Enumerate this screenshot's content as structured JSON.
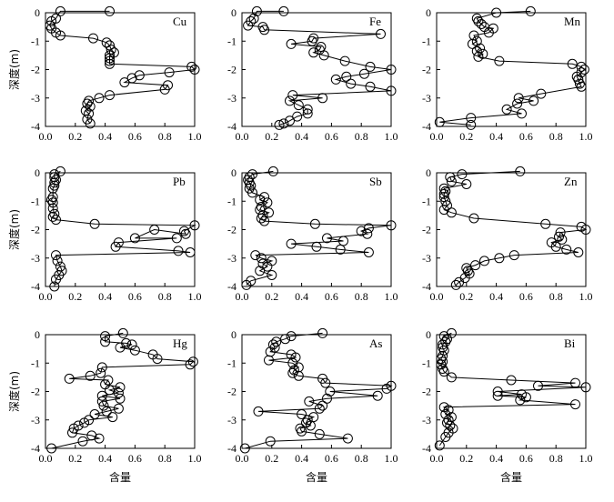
{
  "labels": {
    "xlabel": "含量",
    "ylabel": "深度(m)"
  },
  "chart_data": [
    {
      "type": "line",
      "panel": "Cu",
      "xlim": [
        0,
        1
      ],
      "ylim": [
        -4,
        0
      ],
      "x": [
        0.43,
        0.1,
        0.07,
        0.04,
        0.03,
        0.04,
        0.07,
        0.1,
        0.32,
        0.41,
        0.43,
        0.44,
        0.46,
        0.43,
        0.43,
        0.43,
        0.43,
        0.98,
        1.0,
        0.83,
        0.63,
        0.58,
        0.53,
        0.82,
        0.8,
        0.43,
        0.36,
        0.29,
        0.28,
        0.3,
        0.27,
        0.29,
        0.28,
        0.3
      ],
      "y": [
        0.05,
        0.05,
        -0.2,
        -0.3,
        -0.45,
        -0.55,
        -0.7,
        -0.8,
        -0.9,
        -1.05,
        -1.15,
        -1.3,
        -1.4,
        -1.5,
        -1.6,
        -1.7,
        -1.8,
        -1.9,
        -2.0,
        -2.1,
        -2.2,
        -2.3,
        -2.45,
        -2.55,
        -2.7,
        -2.9,
        -3.0,
        -3.1,
        -3.2,
        -3.3,
        -3.45,
        -3.55,
        -3.75,
        -3.9
      ]
    },
    {
      "type": "line",
      "panel": "Fe",
      "xlim": [
        0,
        1
      ],
      "ylim": [
        -4,
        0
      ],
      "x": [
        0.28,
        0.1,
        0.08,
        0.06,
        0.04,
        0.14,
        0.15,
        0.93,
        0.48,
        0.47,
        0.33,
        0.53,
        0.52,
        0.48,
        0.55,
        0.69,
        0.86,
        1.0,
        0.82,
        0.7,
        0.63,
        0.73,
        0.86,
        1.0,
        0.34,
        0.54,
        0.32,
        0.38,
        0.44,
        0.44,
        0.37,
        0.32,
        0.28,
        0.25
      ],
      "y": [
        0.05,
        0.05,
        -0.2,
        -0.3,
        -0.45,
        -0.5,
        -0.6,
        -0.75,
        -0.9,
        -1.0,
        -1.1,
        -1.2,
        -1.3,
        -1.4,
        -1.5,
        -1.7,
        -1.9,
        -2.0,
        -2.15,
        -2.25,
        -2.35,
        -2.5,
        -2.6,
        -2.75,
        -2.9,
        -3.0,
        -3.1,
        -3.25,
        -3.4,
        -3.55,
        -3.65,
        -3.8,
        -3.9,
        -3.95
      ]
    },
    {
      "type": "line",
      "panel": "Mn",
      "xlim": [
        0,
        1
      ],
      "ylim": [
        -4,
        0
      ],
      "x": [
        0.63,
        0.4,
        0.27,
        0.28,
        0.3,
        0.32,
        0.38,
        0.35,
        0.25,
        0.27,
        0.24,
        0.29,
        0.27,
        0.31,
        0.28,
        0.42,
        0.91,
        0.97,
        0.99,
        0.97,
        0.94,
        0.95,
        0.96,
        0.97,
        0.7,
        0.55,
        0.65,
        0.54,
        0.47,
        0.57,
        0.23,
        0.02,
        0.23
      ],
      "y": [
        0.05,
        0.0,
        -0.2,
        -0.3,
        -0.4,
        -0.5,
        -0.55,
        -0.7,
        -0.8,
        -1.0,
        -1.1,
        -1.25,
        -1.35,
        -1.45,
        -1.55,
        -1.7,
        -1.8,
        -1.9,
        -2.0,
        -2.1,
        -2.25,
        -2.35,
        -2.5,
        -2.6,
        -2.85,
        -3.0,
        -3.1,
        -3.2,
        -3.4,
        -3.55,
        -3.7,
        -3.85,
        -3.95
      ]
    },
    {
      "type": "line",
      "panel": "Pb",
      "xlim": [
        0,
        1
      ],
      "ylim": [
        -4,
        0
      ],
      "x": [
        0.1,
        0.06,
        0.06,
        0.07,
        0.06,
        0.06,
        0.05,
        0.05,
        0.04,
        0.05,
        0.05,
        0.06,
        0.05,
        0.07,
        0.33,
        1.0,
        0.93,
        0.94,
        0.73,
        0.6,
        0.88,
        0.49,
        0.47,
        0.89,
        0.97,
        0.07,
        0.08,
        0.1,
        0.11,
        0.09,
        0.07,
        0.06
      ],
      "y": [
        0.05,
        -0.05,
        -0.15,
        -0.25,
        -0.35,
        -0.45,
        -0.55,
        -0.85,
        -0.95,
        -1.05,
        -1.25,
        -1.45,
        -1.55,
        -1.65,
        -1.8,
        -1.85,
        -2.05,
        -2.15,
        -2.0,
        -2.3,
        -2.3,
        -2.45,
        -2.6,
        -2.75,
        -2.8,
        -2.9,
        -3.1,
        -3.3,
        -3.45,
        -3.6,
        -3.75,
        -4.0
      ]
    },
    {
      "type": "line",
      "panel": "Sb",
      "xlim": [
        0,
        1
      ],
      "ylim": [
        -4,
        0
      ],
      "x": [
        0.21,
        0.07,
        0.05,
        0.04,
        0.05,
        0.06,
        0.05,
        0.07,
        0.15,
        0.12,
        0.17,
        0.13,
        0.12,
        0.18,
        0.14,
        0.13,
        0.15,
        0.49,
        1.0,
        0.85,
        0.8,
        0.84,
        0.57,
        0.68,
        0.33,
        0.5,
        0.66,
        0.85,
        0.09,
        0.13,
        0.2,
        0.14,
        0.17,
        0.12,
        0.2,
        0.06,
        0.03
      ],
      "y": [
        0.05,
        -0.05,
        -0.15,
        -0.25,
        -0.35,
        -0.45,
        -0.55,
        -0.7,
        -0.85,
        -0.95,
        -1.05,
        -1.2,
        -1.3,
        -1.4,
        -1.5,
        -1.6,
        -1.7,
        -1.8,
        -1.85,
        -1.95,
        -2.05,
        -2.15,
        -2.3,
        -2.4,
        -2.5,
        -2.6,
        -2.7,
        -2.8,
        -2.9,
        -3.0,
        -3.1,
        -3.2,
        -3.3,
        -3.45,
        -3.6,
        -3.8,
        -3.95
      ]
    },
    {
      "type": "line",
      "panel": "Zn",
      "xlim": [
        0,
        1
      ],
      "ylim": [
        -4,
        0
      ],
      "x": [
        0.56,
        0.17,
        0.09,
        0.1,
        0.2,
        0.05,
        0.06,
        0.05,
        0.05,
        0.06,
        0.07,
        0.05,
        0.1,
        0.25,
        0.73,
        0.97,
        1.0,
        0.83,
        0.82,
        0.84,
        0.77,
        0.8,
        0.87,
        0.95,
        0.52,
        0.42,
        0.32,
        0.26,
        0.2,
        0.21,
        0.22,
        0.19,
        0.15,
        0.13
      ],
      "y": [
        0.05,
        -0.05,
        -0.15,
        -0.3,
        -0.4,
        -0.55,
        -0.65,
        -0.75,
        -0.85,
        -1.0,
        -1.15,
        -1.3,
        -1.4,
        -1.6,
        -1.8,
        -1.9,
        -2.0,
        -2.1,
        -2.25,
        -2.35,
        -2.45,
        -2.6,
        -2.7,
        -2.8,
        -2.9,
        -3.0,
        -3.1,
        -3.25,
        -3.35,
        -3.45,
        -3.55,
        -3.7,
        -3.85,
        -3.95
      ]
    },
    {
      "type": "line",
      "panel": "Hg",
      "xlim": [
        0,
        1
      ],
      "ylim": [
        -4,
        0
      ],
      "x": [
        0.52,
        0.4,
        0.4,
        0.54,
        0.58,
        0.5,
        0.6,
        0.72,
        0.75,
        0.99,
        0.97,
        0.38,
        0.37,
        0.3,
        0.16,
        0.42,
        0.4,
        0.5,
        0.43,
        0.49,
        0.38,
        0.5,
        0.38,
        0.39,
        0.49,
        0.41,
        0.33,
        0.45,
        0.29,
        0.26,
        0.22,
        0.19,
        0.18,
        0.31,
        0.36,
        0.25,
        0.04
      ],
      "y": [
        0.05,
        -0.05,
        -0.25,
        -0.3,
        -0.35,
        -0.45,
        -0.55,
        -0.7,
        -0.85,
        -0.95,
        -1.05,
        -1.15,
        -1.35,
        -1.45,
        -1.55,
        -1.6,
        -1.75,
        -1.85,
        -1.95,
        -2.05,
        -2.15,
        -2.25,
        -2.35,
        -2.5,
        -2.6,
        -2.7,
        -2.8,
        -2.9,
        -3.0,
        -3.1,
        -3.2,
        -3.3,
        -3.45,
        -3.55,
        -3.65,
        -3.75,
        -4.0
      ]
    },
    {
      "type": "line",
      "panel": "As",
      "xlim": [
        0,
        1
      ],
      "ylim": [
        -4,
        0
      ],
      "x": [
        0.54,
        0.33,
        0.29,
        0.23,
        0.21,
        0.22,
        0.19,
        0.33,
        0.36,
        0.18,
        0.34,
        0.38,
        0.35,
        0.34,
        0.38,
        0.54,
        0.56,
        1.0,
        0.97,
        0.59,
        0.91,
        0.57,
        0.45,
        0.54,
        0.52,
        0.11,
        0.4,
        0.48,
        0.44,
        0.43,
        0.46,
        0.39,
        0.4,
        0.52,
        0.71,
        0.19,
        0.02
      ],
      "y": [
        0.05,
        -0.05,
        -0.15,
        -0.25,
        -0.35,
        -0.45,
        -0.6,
        -0.7,
        -0.8,
        -0.9,
        -1.0,
        -1.15,
        -1.25,
        -1.35,
        -1.45,
        -1.55,
        -1.7,
        -1.8,
        -1.9,
        -2.0,
        -2.15,
        -2.25,
        -2.35,
        -2.5,
        -2.6,
        -2.7,
        -2.8,
        -2.9,
        -3.0,
        -3.1,
        -3.2,
        -3.3,
        -3.4,
        -3.5,
        -3.65,
        -3.75,
        -4.0
      ]
    },
    {
      "type": "line",
      "panel": "Bi",
      "xlim": [
        0,
        1
      ],
      "ylim": [
        -4,
        0
      ],
      "x": [
        0.1,
        0.05,
        0.07,
        0.06,
        0.04,
        0.04,
        0.05,
        0.04,
        0.03,
        0.04,
        0.03,
        0.04,
        0.05,
        0.1,
        0.5,
        0.93,
        0.68,
        1.0,
        0.41,
        0.57,
        0.41,
        0.6,
        0.56,
        0.93,
        0.05,
        0.08,
        0.06,
        0.1,
        0.08,
        0.07,
        0.09,
        0.11,
        0.08,
        0.06,
        0.02
      ],
      "y": [
        0.05,
        -0.05,
        -0.15,
        -0.25,
        -0.35,
        -0.45,
        -0.55,
        -0.75,
        -0.85,
        -0.95,
        -1.05,
        -1.2,
        -1.3,
        -1.5,
        -1.6,
        -1.7,
        -1.8,
        -1.85,
        -2.0,
        -2.1,
        -2.15,
        -2.2,
        -2.3,
        -2.45,
        -2.55,
        -2.65,
        -2.8,
        -2.9,
        -3.0,
        -3.1,
        -3.2,
        -3.3,
        -3.45,
        -3.6,
        -3.9
      ]
    }
  ]
}
